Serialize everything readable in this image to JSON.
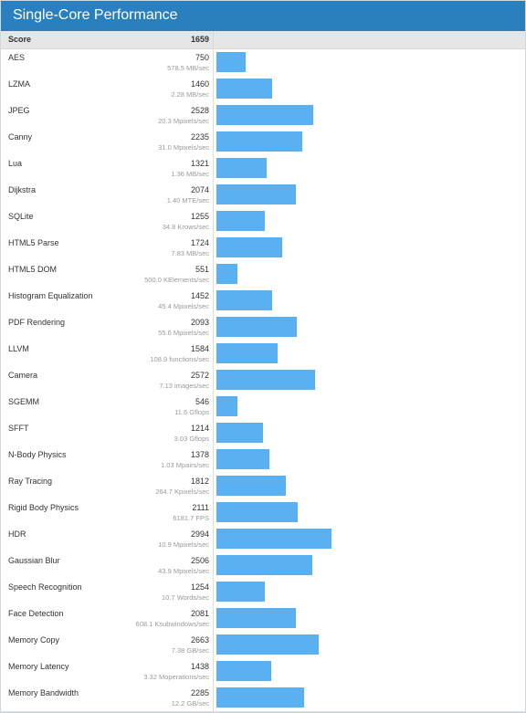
{
  "title": "Single-Core Performance",
  "score_label": "Score",
  "score_value": "1659",
  "colors": {
    "header": "#2a80bf",
    "bar": "#5ab0f0"
  },
  "chart_data": {
    "type": "bar",
    "orientation": "horizontal",
    "title": "Single-Core Performance",
    "xlim": [
      0,
      3000
    ],
    "grid": false,
    "categories": [
      "AES",
      "LZMA",
      "JPEG",
      "Canny",
      "Lua",
      "Dijkstra",
      "SQLite",
      "HTML5 Parse",
      "HTML5 DOM",
      "Histogram Equalization",
      "PDF Rendering",
      "LLVM",
      "Camera",
      "SGEMM",
      "SFFT",
      "N-Body Physics",
      "Ray Tracing",
      "Rigid Body Physics",
      "HDR",
      "Gaussian Blur",
      "Speech Recognition",
      "Face Detection",
      "Memory Copy",
      "Memory Latency",
      "Memory Bandwidth"
    ],
    "values": [
      750,
      1460,
      2528,
      2235,
      1321,
      2074,
      1255,
      1724,
      551,
      1452,
      2093,
      1584,
      2572,
      546,
      1214,
      1378,
      1812,
      2111,
      2994,
      2506,
      1254,
      2081,
      2663,
      1438,
      2285
    ],
    "rows": [
      {
        "name": "AES",
        "score": "750",
        "rate": "578.5 MB/sec"
      },
      {
        "name": "LZMA",
        "score": "1460",
        "rate": "2.28 MB/sec"
      },
      {
        "name": "JPEG",
        "score": "2528",
        "rate": "20.3 Mpixels/sec"
      },
      {
        "name": "Canny",
        "score": "2235",
        "rate": "31.0 Mpixels/sec"
      },
      {
        "name": "Lua",
        "score": "1321",
        "rate": "1.36 MB/sec"
      },
      {
        "name": "Dijkstra",
        "score": "2074",
        "rate": "1.40 MTE/sec"
      },
      {
        "name": "SQLite",
        "score": "1255",
        "rate": "34.8 Krows/sec"
      },
      {
        "name": "HTML5 Parse",
        "score": "1724",
        "rate": "7.83 MB/sec"
      },
      {
        "name": "HTML5 DOM",
        "score": "551",
        "rate": "500.0 KElements/sec"
      },
      {
        "name": "Histogram Equalization",
        "score": "1452",
        "rate": "45.4 Mpixels/sec"
      },
      {
        "name": "PDF Rendering",
        "score": "2093",
        "rate": "55.6 Mpixels/sec"
      },
      {
        "name": "LLVM",
        "score": "1584",
        "rate": "108.9 functions/sec"
      },
      {
        "name": "Camera",
        "score": "2572",
        "rate": "7.13 images/sec"
      },
      {
        "name": "SGEMM",
        "score": "546",
        "rate": "11.6 Gflops"
      },
      {
        "name": "SFFT",
        "score": "1214",
        "rate": "3.03 Gflops"
      },
      {
        "name": "N-Body Physics",
        "score": "1378",
        "rate": "1.03 Mpairs/sec"
      },
      {
        "name": "Ray Tracing",
        "score": "1812",
        "rate": "264.7 Kpixels/sec"
      },
      {
        "name": "Rigid Body Physics",
        "score": "2111",
        "rate": "6181.7 FPS"
      },
      {
        "name": "HDR",
        "score": "2994",
        "rate": "10.9 Mpixels/sec"
      },
      {
        "name": "Gaussian Blur",
        "score": "2506",
        "rate": "43.9 Mpixels/sec"
      },
      {
        "name": "Speech Recognition",
        "score": "1254",
        "rate": "10.7 Words/sec"
      },
      {
        "name": "Face Detection",
        "score": "2081",
        "rate": "608.1 Ksubwindows/sec"
      },
      {
        "name": "Memory Copy",
        "score": "2663",
        "rate": "7.38 GB/sec"
      },
      {
        "name": "Memory Latency",
        "score": "1438",
        "rate": "3.32 Moperations/sec"
      },
      {
        "name": "Memory Bandwidth",
        "score": "2285",
        "rate": "12.2 GB/sec"
      }
    ]
  }
}
